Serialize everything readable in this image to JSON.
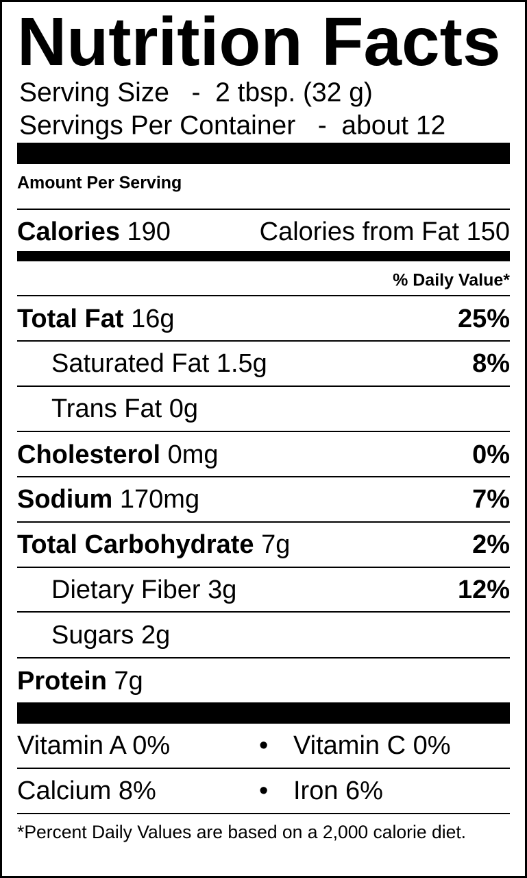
{
  "title": "Nutrition Facts",
  "serving": {
    "size_label": "Serving Size",
    "separator": "-",
    "size": "2 tbsp. (32 g)",
    "per_container_label": "Servings Per Container",
    "per_container": "about 12"
  },
  "amount_per_serving": "Amount Per Serving",
  "calories": {
    "label": "Calories",
    "value": 190,
    "from_fat_label": "Calories from Fat",
    "from_fat": 150
  },
  "daily_value_header": "% Daily Value*",
  "nutrients": [
    {
      "name": "Total Fat",
      "amount": "16g",
      "dv": "25%"
    },
    {
      "name": "Saturated Fat",
      "amount": "1.5g",
      "dv": "8%"
    },
    {
      "name": "Trans Fat",
      "amount": "0g"
    },
    {
      "name": "Cholesterol",
      "amount": "0mg",
      "dv": "0%"
    },
    {
      "name": "Sodium",
      "amount": "170mg",
      "dv": "7%"
    },
    {
      "name": "Total Carbohydrate",
      "amount": "7g",
      "dv": "2%"
    },
    {
      "name": "Dietary Fiber",
      "amount": "3g",
      "dv": "12%"
    },
    {
      "name": "Sugars",
      "amount": "2g"
    },
    {
      "name": "Protein",
      "amount": "7g"
    }
  ],
  "vitamins": [
    {
      "name": "Vitamin A",
      "dv": "0%"
    },
    {
      "name": "Vitamin C",
      "dv": "0%"
    },
    {
      "name": "Calcium",
      "dv": "8%"
    },
    {
      "name": "Iron",
      "dv": "6%"
    }
  ],
  "bullet": "•",
  "footnote": "*Percent Daily Values are based on a 2,000 calorie diet."
}
